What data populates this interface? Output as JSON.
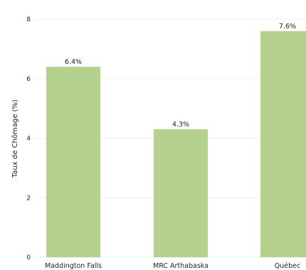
{
  "chart_data": {
    "type": "bar",
    "title": "",
    "xlabel": "",
    "ylabel": "Taux de Chômage (%)",
    "ylim": [
      0,
      8
    ],
    "yticks": [
      0,
      2,
      4,
      6,
      8
    ],
    "grid": true,
    "categories": [
      "Maddington Falls",
      "MRC Arthabaska",
      "Québec"
    ],
    "values": [
      6.4,
      4.3,
      7.6
    ],
    "data_labels": [
      "6.4%",
      "4.3%",
      "7.6%"
    ],
    "bar_color": "#b5d18e"
  }
}
